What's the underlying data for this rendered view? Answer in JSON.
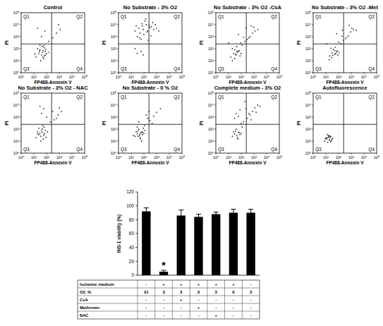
{
  "chart_data": [
    {
      "type": "scatter",
      "title": "Control",
      "x_label": "FP488-Annexin V",
      "y_label": "PI",
      "log": true,
      "xlim": [
        1,
        100000
      ],
      "ylim": [
        1,
        100000
      ],
      "xticks": [
        {
          "value": 1,
          "label": "10⁰"
        },
        {
          "value": 10,
          "label": "10¹"
        },
        {
          "value": 100,
          "label": "10²"
        },
        {
          "value": 1000,
          "label": "10³"
        },
        {
          "value": 10000,
          "label": "10⁴"
        },
        {
          "value": 100000,
          "label": "10⁵"
        }
      ],
      "yticks": [
        {
          "value": 1,
          "label": "10⁰"
        },
        {
          "value": 10,
          "label": "10¹"
        },
        {
          "value": 100,
          "label": "10²"
        },
        {
          "value": 1000,
          "label": "10³"
        },
        {
          "value": 10000,
          "label": "10⁴"
        },
        {
          "value": 100000,
          "label": "10⁵"
        }
      ],
      "quadrant_labels": [
        "Q1",
        "Q2",
        "Q3",
        "Q4"
      ],
      "gate_x": 250,
      "gate_y": 250,
      "color": "#333333",
      "marker": "dot",
      "x": [
        15,
        25,
        40,
        60,
        80,
        30,
        50,
        20,
        70,
        100,
        45,
        35,
        12,
        90,
        55,
        28,
        65,
        150,
        40,
        75,
        20,
        300,
        600,
        1200,
        30,
        80,
        50,
        900,
        150,
        60
      ],
      "values": [
        20,
        40,
        30,
        15,
        60,
        80,
        50,
        100,
        25,
        40,
        150,
        10,
        35,
        90,
        70,
        60,
        120,
        50,
        1000,
        3000,
        5000,
        800,
        2000,
        4000,
        200,
        30,
        20,
        10000,
        400,
        180
      ]
    },
    {
      "type": "scatter",
      "title": "No Substrate - 3% O2",
      "x_label": "FP488-Annexin V",
      "y_label": "PI",
      "log": true,
      "xlim": [
        1,
        100000
      ],
      "ylim": [
        1,
        100000
      ],
      "xticks": [
        {
          "value": 1,
          "label": "10⁰"
        },
        {
          "value": 10,
          "label": "10¹"
        },
        {
          "value": 100,
          "label": "10²"
        },
        {
          "value": 1000,
          "label": "10³"
        },
        {
          "value": 10000,
          "label": "10⁴"
        },
        {
          "value": 100000,
          "label": "10⁵"
        }
      ],
      "yticks": [
        {
          "value": 1,
          "label": "10⁰"
        },
        {
          "value": 10,
          "label": "10¹"
        },
        {
          "value": 100,
          "label": "10²"
        },
        {
          "value": 1000,
          "label": "10³"
        },
        {
          "value": 10000,
          "label": "10⁴"
        },
        {
          "value": 100000,
          "label": "10⁵"
        }
      ],
      "quadrant_labels": [
        "Q1",
        "Q2",
        "Q3",
        "Q4"
      ],
      "gate_x": 250,
      "gate_y": 250,
      "color": "#333333",
      "marker": "dot",
      "x": [
        20,
        40,
        80,
        150,
        300,
        600,
        50,
        100,
        200,
        400,
        30,
        70,
        120,
        250,
        500,
        1000,
        60,
        90,
        180,
        350,
        25,
        45,
        800,
        1500,
        140,
        220,
        30,
        60,
        20,
        90
      ],
      "values": [
        3000,
        5000,
        8000,
        10000,
        6000,
        4000,
        2000,
        1500,
        3000,
        7000,
        1000,
        12000,
        20000,
        9000,
        15000,
        5000,
        600,
        4000,
        2500,
        1200,
        8000,
        800,
        10000,
        3000,
        30000,
        500,
        40,
        60,
        100,
        30
      ]
    },
    {
      "type": "scatter",
      "title": "No Substrate - 3% O2 -CsA",
      "x_label": "FP488-Annexin V",
      "y_label": "PI",
      "log": true,
      "xlim": [
        1,
        100000
      ],
      "ylim": [
        1,
        100000
      ],
      "xticks": [
        {
          "value": 1,
          "label": "10⁰"
        },
        {
          "value": 10,
          "label": "10¹"
        },
        {
          "value": 100,
          "label": "10²"
        },
        {
          "value": 1000,
          "label": "10³"
        },
        {
          "value": 10000,
          "label": "10⁴"
        },
        {
          "value": 100000,
          "label": "10⁵"
        }
      ],
      "yticks": [
        {
          "value": 1,
          "label": "10⁰"
        },
        {
          "value": 10,
          "label": "10¹"
        },
        {
          "value": 100,
          "label": "10²"
        },
        {
          "value": 1000,
          "label": "10³"
        },
        {
          "value": 10000,
          "label": "10⁴"
        },
        {
          "value": 100000,
          "label": "10⁵"
        }
      ],
      "quadrant_labels": [
        "Q1",
        "Q2",
        "Q3",
        "Q4"
      ],
      "gate_x": 250,
      "gate_y": 250,
      "color": "#333333",
      "marker": "dot",
      "x": [
        15,
        25,
        40,
        60,
        30,
        50,
        80,
        20,
        100,
        45,
        70,
        35,
        120,
        200,
        300,
        500,
        800,
        1200,
        400,
        250,
        60,
        90,
        150,
        20,
        10,
        30,
        600,
        1000,
        2000,
        45
      ],
      "values": [
        20,
        40,
        30,
        60,
        80,
        50,
        25,
        100,
        40,
        150,
        70,
        35,
        200,
        400,
        600,
        1000,
        2000,
        3000,
        800,
        5000,
        1500,
        300,
        900,
        10,
        300,
        15,
        8000,
        6000,
        4000,
        60
      ]
    },
    {
      "type": "scatter",
      "title": "No Substrate - 3% O2 -Met",
      "x_label": "FP488-Annexin V",
      "y_label": "PI",
      "log": true,
      "xlim": [
        1,
        100000
      ],
      "ylim": [
        1,
        100000
      ],
      "xticks": [
        {
          "value": 1,
          "label": "10⁰"
        },
        {
          "value": 10,
          "label": "10¹"
        },
        {
          "value": 100,
          "label": "10²"
        },
        {
          "value": 1000,
          "label": "10³"
        },
        {
          "value": 10000,
          "label": "10⁴"
        },
        {
          "value": 100000,
          "label": "10⁵"
        }
      ],
      "yticks": [
        {
          "value": 1,
          "label": "10⁰"
        },
        {
          "value": 10,
          "label": "10¹"
        },
        {
          "value": 100,
          "label": "10²"
        },
        {
          "value": 1000,
          "label": "10³"
        },
        {
          "value": 10000,
          "label": "10⁴"
        },
        {
          "value": 100000,
          "label": "10⁵"
        }
      ],
      "quadrant_labels": [
        "Q1",
        "Q2",
        "Q3",
        "Q4"
      ],
      "gate_x": 250,
      "gate_y": 250,
      "color": "#333333",
      "marker": "dot",
      "x": [
        20,
        30,
        50,
        70,
        40,
        60,
        90,
        25,
        110,
        55,
        80,
        35,
        150,
        250,
        350,
        600,
        900,
        1500,
        450,
        200,
        70,
        100,
        180,
        18,
        12,
        28,
        700,
        1100,
        2500,
        50
      ],
      "values": [
        25,
        45,
        35,
        55,
        90,
        40,
        30,
        110,
        50,
        130,
        65,
        28,
        250,
        500,
        700,
        1200,
        2500,
        4000,
        900,
        3500,
        1800,
        350,
        1100,
        12,
        250,
        18,
        9000,
        5000,
        3500,
        70
      ]
    },
    {
      "type": "scatter",
      "title": "No Substrate - 3% O2 - NAC",
      "x_label": "FP488-Annexin V",
      "y_label": "PI",
      "log": true,
      "xlim": [
        1,
        100000
      ],
      "ylim": [
        1,
        100000
      ],
      "xticks": [
        {
          "value": 1,
          "label": "10⁰"
        },
        {
          "value": 10,
          "label": "10¹"
        },
        {
          "value": 100,
          "label": "10²"
        },
        {
          "value": 1000,
          "label": "10³"
        },
        {
          "value": 10000,
          "label": "10⁴"
        },
        {
          "value": 100000,
          "label": "10⁵"
        }
      ],
      "yticks": [
        {
          "value": 1,
          "label": "10⁰"
        },
        {
          "value": 10,
          "label": "10¹"
        },
        {
          "value": 100,
          "label": "10²"
        },
        {
          "value": 1000,
          "label": "10³"
        },
        {
          "value": 10000,
          "label": "10⁴"
        },
        {
          "value": 100000,
          "label": "10⁵"
        }
      ],
      "quadrant_labels": [
        "Q1",
        "Q2",
        "Q3",
        "Q4"
      ],
      "gate_x": 250,
      "gate_y": 250,
      "color": "#333333",
      "marker": "dot",
      "x": [
        15,
        25,
        35,
        50,
        70,
        40,
        60,
        20,
        90,
        45,
        30,
        55,
        80,
        25,
        120,
        400,
        800,
        1500,
        300,
        600,
        40,
        60,
        30,
        100,
        200,
        1000,
        50,
        35,
        20,
        65
      ],
      "values": [
        20,
        35,
        25,
        50,
        40,
        70,
        30,
        60,
        20,
        100,
        45,
        15,
        80,
        120,
        60,
        600,
        1500,
        3000,
        3000,
        800,
        2000,
        5000,
        8000,
        1000,
        400,
        6000,
        200,
        10,
        40,
        150
      ]
    },
    {
      "type": "scatter",
      "title": "No Substrate - 0 % O2",
      "x_label": "FP488-Annexin V",
      "y_label": "PI",
      "log": true,
      "xlim": [
        1,
        100000
      ],
      "ylim": [
        1,
        100000
      ],
      "xticks": [
        {
          "value": 1,
          "label": "10⁰"
        },
        {
          "value": 10,
          "label": "10¹"
        },
        {
          "value": 100,
          "label": "10²"
        },
        {
          "value": 1000,
          "label": "10³"
        },
        {
          "value": 10000,
          "label": "10⁴"
        },
        {
          "value": 100000,
          "label": "10⁵"
        }
      ],
      "yticks": [
        {
          "value": 1,
          "label": "10⁰"
        },
        {
          "value": 10,
          "label": "10¹"
        },
        {
          "value": 100,
          "label": "10²"
        },
        {
          "value": 1000,
          "label": "10³"
        },
        {
          "value": 10000,
          "label": "10⁴"
        },
        {
          "value": 100000,
          "label": "10⁵"
        }
      ],
      "quadrant_labels": [
        "Q1",
        "Q2",
        "Q3",
        "Q4"
      ],
      "gate_x": 250,
      "gate_y": 250,
      "color": "#333333",
      "marker": "dot",
      "x": [
        20,
        30,
        45,
        60,
        80,
        35,
        50,
        25,
        100,
        40,
        70,
        55,
        15,
        120,
        90,
        300,
        600,
        1000,
        200,
        450,
        40,
        150,
        30,
        65,
        250,
        2000,
        80,
        35,
        50,
        110
      ],
      "values": [
        25,
        40,
        30,
        55,
        35,
        70,
        20,
        60,
        45,
        100,
        50,
        15,
        30,
        80,
        120,
        500,
        1200,
        2500,
        800,
        300,
        400,
        1500,
        150,
        10,
        3000,
        5000,
        60,
        25,
        40,
        200
      ]
    },
    {
      "type": "scatter",
      "title": "Complete medium - 3% O2",
      "x_label": "FP488-Annexin V",
      "y_label": "PI",
      "log": true,
      "xlim": [
        1,
        100000
      ],
      "ylim": [
        1,
        100000
      ],
      "xticks": [
        {
          "value": 1,
          "label": "10⁰"
        },
        {
          "value": 10,
          "label": "10¹"
        },
        {
          "value": 100,
          "label": "10²"
        },
        {
          "value": 1000,
          "label": "10³"
        },
        {
          "value": 10000,
          "label": "10⁴"
        },
        {
          "value": 100000,
          "label": "10⁵"
        }
      ],
      "yticks": [
        {
          "value": 1,
          "label": "10⁰"
        },
        {
          "value": 10,
          "label": "10¹"
        },
        {
          "value": 100,
          "label": "10²"
        },
        {
          "value": 1000,
          "label": "10³"
        },
        {
          "value": 10000,
          "label": "10⁴"
        },
        {
          "value": 100000,
          "label": "10⁵"
        }
      ],
      "quadrant_labels": [
        "Q1",
        "Q2",
        "Q3",
        "Q4"
      ],
      "gate_x": 250,
      "gate_y": 250,
      "color": "#333333",
      "marker": "dot",
      "x": [
        20,
        30,
        45,
        60,
        80,
        35,
        50,
        25,
        100,
        40,
        70,
        55,
        150,
        300,
        500,
        800,
        1200,
        2000,
        400,
        250,
        60,
        100,
        200,
        30,
        600,
        1500,
        40,
        80,
        120,
        3000
      ],
      "values": [
        25,
        40,
        30,
        55,
        35,
        70,
        20,
        60,
        45,
        100,
        50,
        15,
        400,
        800,
        1500,
        3000,
        6000,
        10000,
        2000,
        5000,
        1200,
        300,
        20000,
        800,
        600,
        2500,
        2000,
        4000,
        150,
        8000
      ]
    },
    {
      "type": "scatter",
      "title": "Autofluorescence",
      "x_label": "FP488-Annexin V",
      "y_label": "PI",
      "log": true,
      "xlim": [
        1,
        100000
      ],
      "ylim": [
        1,
        100000
      ],
      "xticks": [
        {
          "value": 1,
          "label": "10⁰"
        },
        {
          "value": 10,
          "label": "10¹"
        },
        {
          "value": 100,
          "label": "10²"
        },
        {
          "value": 1000,
          "label": "10³"
        },
        {
          "value": 10000,
          "label": "10⁴"
        },
        {
          "value": 100000,
          "label": "10⁵"
        }
      ],
      "yticks": [
        {
          "value": 1,
          "label": "10⁰"
        },
        {
          "value": 10,
          "label": "10¹"
        },
        {
          "value": 100,
          "label": "10²"
        },
        {
          "value": 1000,
          "label": "10³"
        },
        {
          "value": 10000,
          "label": "10⁴"
        },
        {
          "value": 100000,
          "label": "10⁵"
        }
      ],
      "quadrant_labels": [
        "Q1",
        "Q2",
        "Q3",
        "Q4"
      ],
      "gate_x": 250,
      "gate_y": 250,
      "color": "#333333",
      "marker": "dot",
      "x": [
        8,
        12,
        15,
        20,
        25,
        10,
        18,
        30,
        14,
        22,
        9,
        16,
        28,
        11,
        35,
        13,
        19,
        24,
        17,
        21
      ],
      "values": [
        10,
        15,
        20,
        12,
        25,
        18,
        30,
        14,
        8,
        22,
        16,
        28,
        11,
        19,
        17,
        35,
        13,
        9,
        24,
        20
      ]
    },
    {
      "type": "bar",
      "y_label": "INS-1 viability (%)",
      "categories": [
        null,
        null,
        null,
        null,
        null,
        null,
        null
      ],
      "values": [
        92,
        5,
        86,
        84,
        88,
        90,
        90
      ],
      "errors": [
        5,
        2,
        8,
        4,
        3,
        5,
        5
      ],
      "color": "#000000",
      "ylim": [
        0,
        120
      ],
      "yticks": [
        0,
        20,
        40,
        60,
        80,
        100,
        120
      ],
      "grid": false,
      "annotations": [
        {
          "text": "*",
          "index": 1
        }
      ]
    }
  ],
  "table": {
    "rows": [
      {
        "label": "Ischemic medium",
        "cells": [
          "-",
          "+",
          "+",
          "+",
          "+",
          "+",
          "-"
        ]
      },
      {
        "label": "O2, %",
        "cells": [
          21,
          3,
          3,
          3,
          3,
          0,
          3
        ]
      },
      {
        "label": "CsA",
        "cells": [
          "-",
          "-",
          "+",
          "-",
          "-",
          "-",
          "-"
        ]
      },
      {
        "label": "Metformin",
        "cells": [
          "-",
          "-",
          "-",
          "+",
          "-",
          "-",
          "-"
        ]
      },
      {
        "label": "NAC",
        "cells": [
          "-",
          "-",
          "-",
          "-",
          "+",
          "-",
          "-"
        ]
      }
    ]
  }
}
